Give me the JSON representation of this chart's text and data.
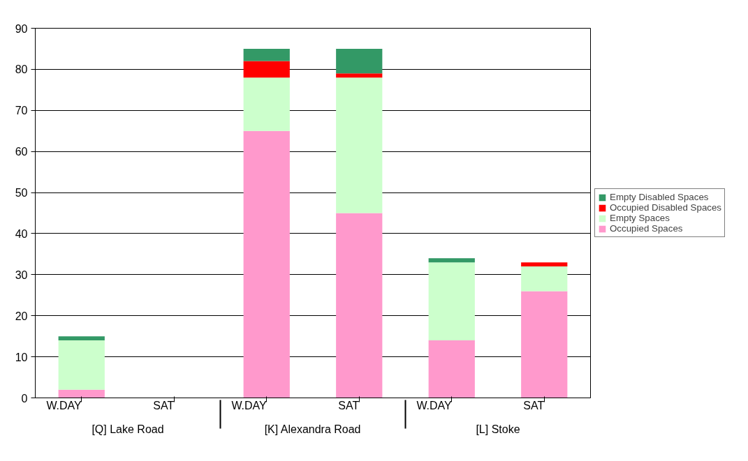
{
  "chart_data": {
    "type": "bar",
    "stacked": true,
    "categories": [
      "W.DAY",
      "SAT",
      "W.DAY",
      "SAT",
      "W.DAY",
      "SAT"
    ],
    "annotations": [
      "[Q] Lake Road",
      "[K] Alexandra Road",
      "[L] Stoke"
    ],
    "series": [
      {
        "name": "Occupied Spaces",
        "color": "#ff99cc",
        "values": [
          2,
          0,
          65,
          45,
          14,
          26
        ]
      },
      {
        "name": "Empty Spaces",
        "color": "#ccffcc",
        "values": [
          12,
          0,
          13,
          33,
          19,
          6
        ]
      },
      {
        "name": "Occupied Disabled Spaces",
        "color": "#ff0000",
        "values": [
          0,
          0,
          4,
          1,
          0,
          1
        ]
      },
      {
        "name": "Empty Disabled Spaces",
        "color": "#339966",
        "values": [
          1,
          0,
          3,
          6,
          1,
          0
        ]
      }
    ],
    "ylim": [
      0,
      90
    ],
    "yticks": [
      0,
      10,
      20,
      30,
      40,
      50,
      60,
      70,
      80,
      90
    ],
    "grid": "y",
    "legend": "right"
  }
}
